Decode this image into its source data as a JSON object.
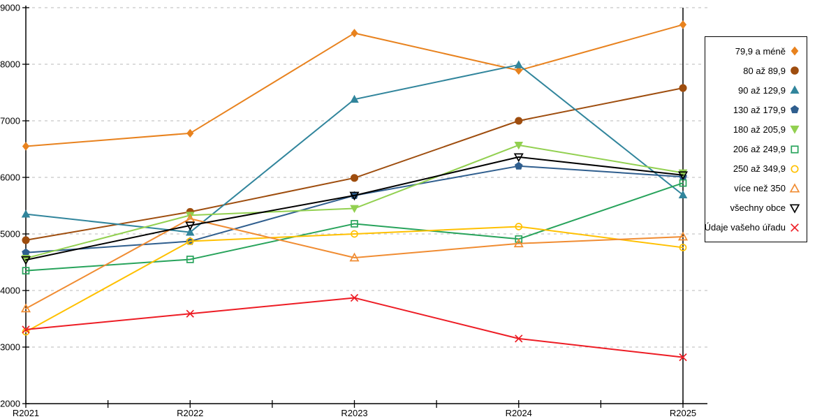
{
  "chart_data": {
    "type": "line",
    "title": "",
    "xlabel": "",
    "ylabel": "",
    "x_categories": [
      "R2021",
      "R2022",
      "R2023",
      "R2024",
      "R2025"
    ],
    "ylim": [
      2000,
      9000
    ],
    "yticks": [
      2000,
      3000,
      4000,
      5000,
      6000,
      7000,
      8000,
      9000
    ],
    "grid": "horizontal-dashed",
    "gridline_color": "#c6c6c6",
    "axis_color": "#000000",
    "legend_position": "right-box",
    "series": [
      {
        "name": "79,9 a méně",
        "color": "#e8821e",
        "marker": "diamond",
        "fill": "filled",
        "values": [
          6550,
          6780,
          8550,
          7890,
          8700
        ]
      },
      {
        "name": "80 až 89,9",
        "color": "#9e4d0e",
        "marker": "circle",
        "fill": "filled",
        "values": [
          4890,
          5390,
          5990,
          7000,
          7580
        ]
      },
      {
        "name": "90 až 129,9",
        "color": "#31859c",
        "marker": "triangle-up",
        "fill": "filled",
        "values": [
          5350,
          5030,
          7380,
          7990,
          5690
        ]
      },
      {
        "name": "130 až 179,9",
        "color": "#2f5e8e",
        "marker": "pentagon",
        "fill": "filled",
        "values": [
          4670,
          4870,
          5680,
          6200,
          6010
        ]
      },
      {
        "name": "180 až 205,9",
        "color": "#92d050",
        "marker": "triangle-down",
        "fill": "filled",
        "values": [
          4570,
          5330,
          5450,
          6570,
          6080
        ]
      },
      {
        "name": "206 až 249,9",
        "color": "#27a35b",
        "marker": "square",
        "fill": "open",
        "values": [
          4350,
          4550,
          5180,
          4910,
          5900
        ]
      },
      {
        "name": "250 až 349,9",
        "color": "#ffc000",
        "marker": "circle",
        "fill": "open",
        "values": [
          3270,
          4870,
          5000,
          5130,
          4760
        ]
      },
      {
        "name": "více než 350",
        "color": "#f08c32",
        "marker": "triangle-up",
        "fill": "open",
        "values": [
          3680,
          5270,
          4580,
          4830,
          4950
        ]
      },
      {
        "name": "všechny obce",
        "color": "#000000",
        "marker": "triangle-down",
        "fill": "open",
        "values": [
          4540,
          5150,
          5680,
          6360,
          6040
        ]
      },
      {
        "name": "Údaje vašeho úřadu",
        "color": "#ed1c24",
        "marker": "x",
        "fill": "open",
        "values": [
          3310,
          3590,
          3870,
          3150,
          2820
        ]
      }
    ]
  }
}
